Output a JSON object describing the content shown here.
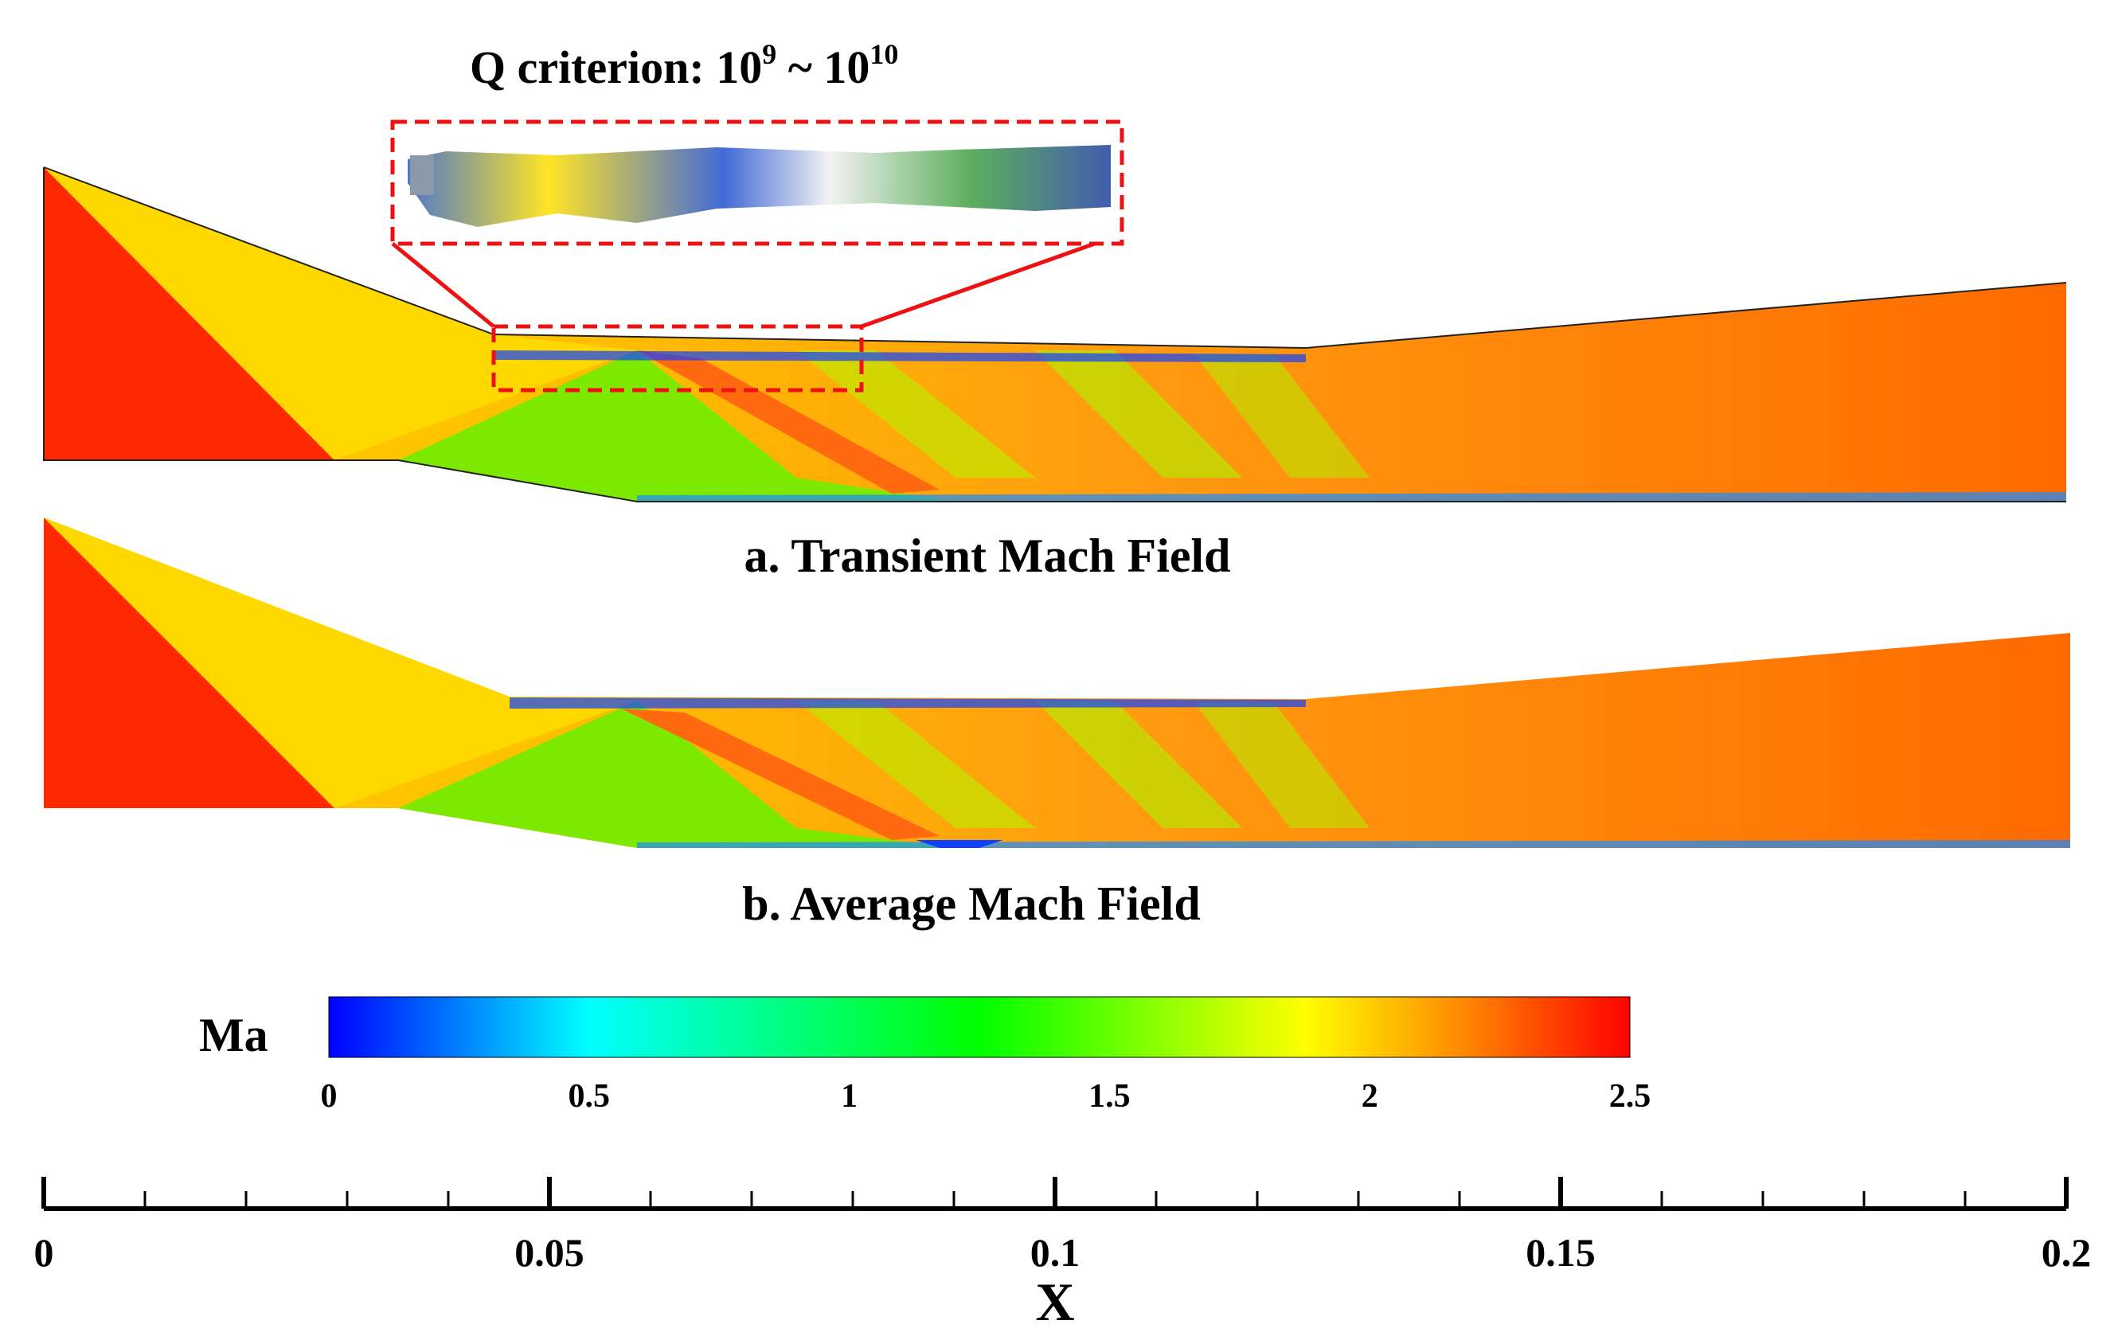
{
  "inset": {
    "title_prefix": "Q criterion: 10",
    "title_exp1": "9",
    "title_mid": " ~ 10",
    "title_exp2": "10"
  },
  "panels": [
    {
      "caption": "a. Transient Mach Field"
    },
    {
      "caption": "b. Average Mach Field"
    }
  ],
  "colorbar": {
    "label": "Ma",
    "min": 0,
    "max": 2.5,
    "ticks": [
      "0",
      "0.5",
      "1",
      "1.5",
      "2",
      "2.5"
    ],
    "colors": [
      "#0000ff",
      "#00ffff",
      "#00ff00",
      "#ffff00",
      "#ff8000",
      "#ff0000"
    ]
  },
  "x_axis": {
    "label": "X",
    "min": 0,
    "max": 0.2,
    "major_ticks": [
      "0",
      "0.05",
      "0.1",
      "0.15",
      "0.2"
    ],
    "minor_step": 0.01
  },
  "colors": {
    "red": "#ff2a00",
    "orange": "#ff7a10",
    "yellow": "#ffd800",
    "green": "#7de800",
    "blue": "#1040ff",
    "zoom_box": "#ee1111"
  }
}
